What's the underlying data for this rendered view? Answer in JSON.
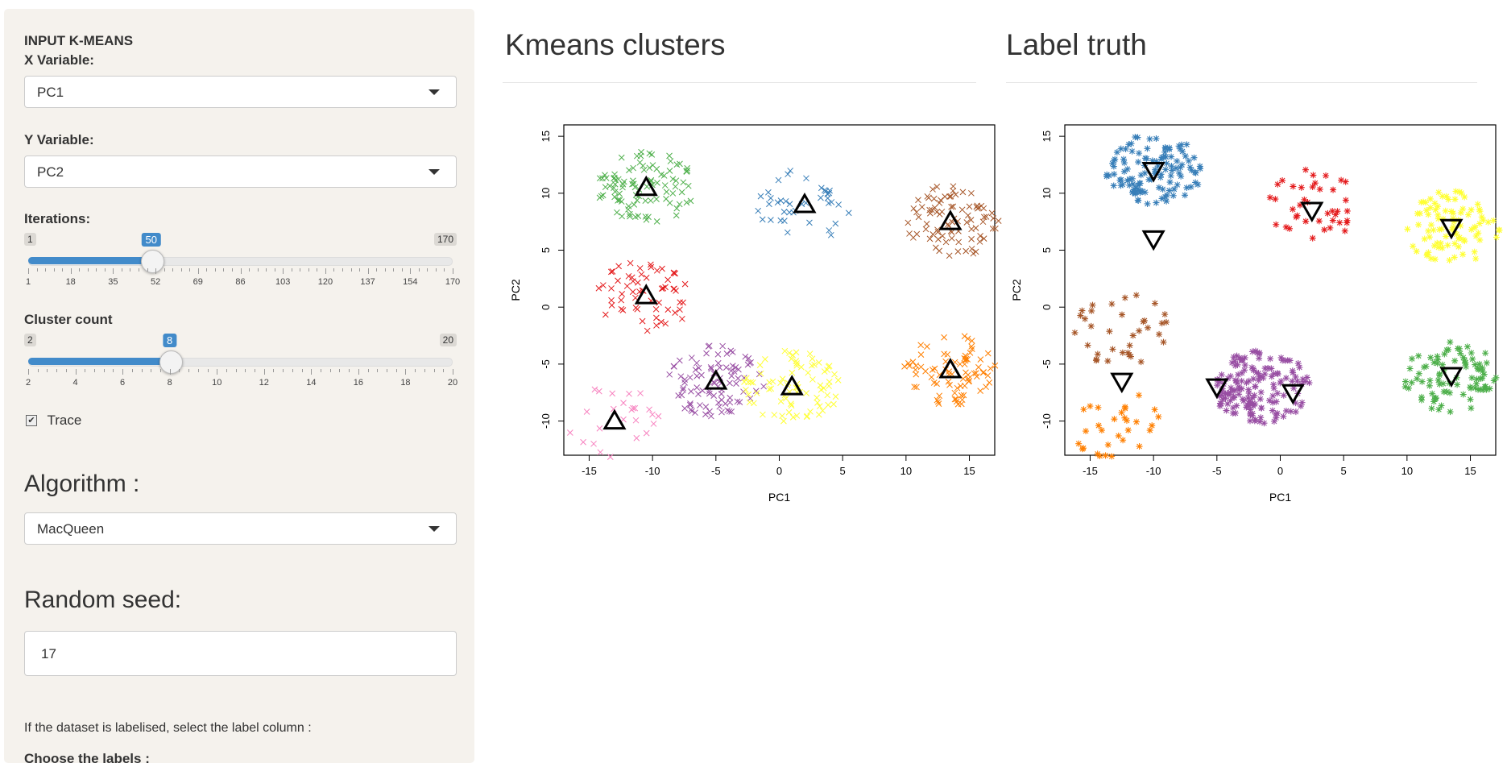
{
  "sidebar": {
    "section_title": "INPUT K-MEANS",
    "x_var_label": "X Variable:",
    "x_var_value": "PC1",
    "y_var_label": "Y Variable:",
    "y_var_value": "PC2",
    "iter_label": "Iterations:",
    "iter_min": "1",
    "iter_max": "170",
    "iter_value": "50",
    "iter_fraction": 0.2899,
    "iter_ticks": [
      "1",
      "18",
      "35",
      "52",
      "69",
      "86",
      "103",
      "120",
      "137",
      "154",
      "170"
    ],
    "clusters_label": "Cluster count",
    "clusters_min": "2",
    "clusters_max": "20",
    "clusters_value": "8",
    "clusters_fraction": 0.3333,
    "clusters_ticks": [
      "2",
      "4",
      "6",
      "8",
      "10",
      "12",
      "14",
      "16",
      "18",
      "20"
    ],
    "trace_label": "Trace",
    "trace_checked": true,
    "algo_heading": "Algorithm :",
    "algo_value": "MacQueen",
    "seed_heading": "Random seed:",
    "seed_value": "17",
    "label_note": "If the dataset is labelised, select the label column :",
    "choose_labels": "Choose the labels :"
  },
  "main": {
    "left_title": "Kmeans clusters",
    "right_title": "Label truth"
  },
  "chart_data": [
    {
      "type": "scatter",
      "title": "",
      "xlabel": "PC1",
      "ylabel": "PC2",
      "xlim": [
        -17,
        17
      ],
      "ylim": [
        -13,
        16
      ],
      "xticks": [
        "-15",
        "-10",
        "-5",
        "0",
        "5",
        "10",
        "15"
      ],
      "yticks": [
        "-10",
        "-5",
        "0",
        "5",
        "10",
        "15"
      ],
      "marker": "x",
      "centroid_marker": "triangle-up",
      "clusters": [
        {
          "color": "#4daf4a",
          "center": [
            -10.5,
            10.5
          ],
          "points": 96
        },
        {
          "color": "#e41a1c",
          "center": [
            -10.5,
            1.0
          ],
          "points": 60
        },
        {
          "color": "#377eb8",
          "center": [
            2.0,
            9.0
          ],
          "points": 40
        },
        {
          "color": "#a65628",
          "center": [
            13.5,
            7.5
          ],
          "points": 85
        },
        {
          "color": "#984ea3",
          "center": [
            -5.0,
            -6.5
          ],
          "points": 90
        },
        {
          "color": "#ffff33",
          "center": [
            1.0,
            -7.0
          ],
          "points": 80
        },
        {
          "color": "#ff7f00",
          "center": [
            13.5,
            -5.5
          ],
          "points": 80
        },
        {
          "color": "#f781bf",
          "center": [
            -13.0,
            -10.0
          ],
          "points": 25
        }
      ]
    },
    {
      "type": "scatter",
      "title": "",
      "xlabel": "PC1",
      "ylabel": "PC2",
      "xlim": [
        -17,
        17
      ],
      "ylim": [
        -13,
        16
      ],
      "xticks": [
        "-15",
        "-10",
        "-5",
        "0",
        "5",
        "10",
        "15"
      ],
      "yticks": [
        "-10",
        "-5",
        "0",
        "5",
        "10",
        "15"
      ],
      "marker": "star",
      "centroid_marker": "triangle-down",
      "clusters": [
        {
          "color": "#377eb8",
          "center": [
            -10.0,
            12.0
          ],
          "points": 120
        },
        {
          "color": "#e41a1c",
          "center": [
            2.5,
            9.0
          ],
          "points": 40
        },
        {
          "color": "#ffff33",
          "center": [
            13.5,
            7.0
          ],
          "points": 90
        },
        {
          "color": "#a65628",
          "center": [
            -12.5,
            -2.0
          ],
          "points": 35
        },
        {
          "color": "#984ea3",
          "center": [
            -1.5,
            -7.0
          ],
          "points": 160
        },
        {
          "color": "#4daf4a",
          "center": [
            13.5,
            -6.0
          ],
          "points": 90
        },
        {
          "color": "#ff7f00",
          "center": [
            -13.0,
            -10.5
          ],
          "points": 30
        }
      ],
      "centroids": [
        [
          -10.0,
          12.0
        ],
        [
          -10.0,
          6.0
        ],
        [
          2.5,
          8.5
        ],
        [
          13.5,
          7.0
        ],
        [
          -12.5,
          -6.5
        ],
        [
          -5.0,
          -7.0
        ],
        [
          1.0,
          -7.5
        ],
        [
          13.5,
          -6.0
        ]
      ]
    }
  ]
}
